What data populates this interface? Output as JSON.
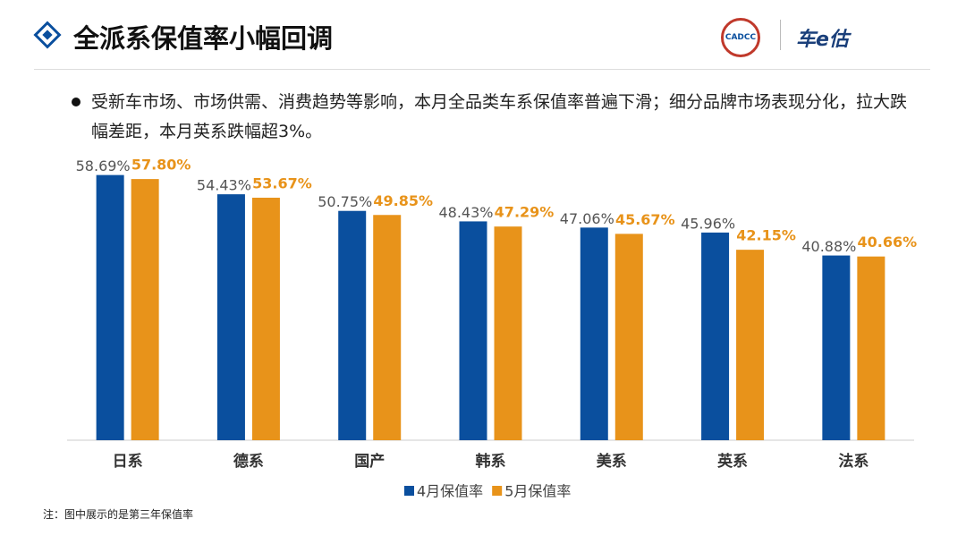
{
  "header": {
    "title": "全派系保值率小幅回调",
    "logo": "CADCC",
    "brand": "车e估"
  },
  "bullet": "受新车市场、市场供需、消费趋势等影响，本月全品类车系保值率普遍下滑；细分品牌市场表现分化，拉大跌幅差距，本月英系跌幅超3%。",
  "note": "注：图中展示的是第三年保值率",
  "chart_data": {
    "type": "bar",
    "categories": [
      "日系",
      "德系",
      "国产",
      "韩系",
      "美系",
      "英系",
      "法系"
    ],
    "series": [
      {
        "name": "4月保值率",
        "color": "#0a4f9e",
        "values": [
          58.69,
          54.43,
          50.75,
          48.43,
          47.06,
          45.96,
          40.88
        ],
        "value_labels": [
          "58.69%",
          "54.43%",
          "50.75%",
          "48.43%",
          "47.06%",
          "45.96%",
          "40.88%"
        ]
      },
      {
        "name": "5月保值率",
        "color": "#e8931a",
        "values": [
          57.8,
          53.67,
          49.85,
          47.29,
          45.67,
          42.15,
          40.66
        ],
        "value_labels": [
          "57.80%",
          "53.67%",
          "49.85%",
          "47.29%",
          "45.67%",
          "42.15%",
          "40.66%"
        ]
      }
    ],
    "ylim": [
      0,
      60
    ],
    "legend": "bottom"
  }
}
